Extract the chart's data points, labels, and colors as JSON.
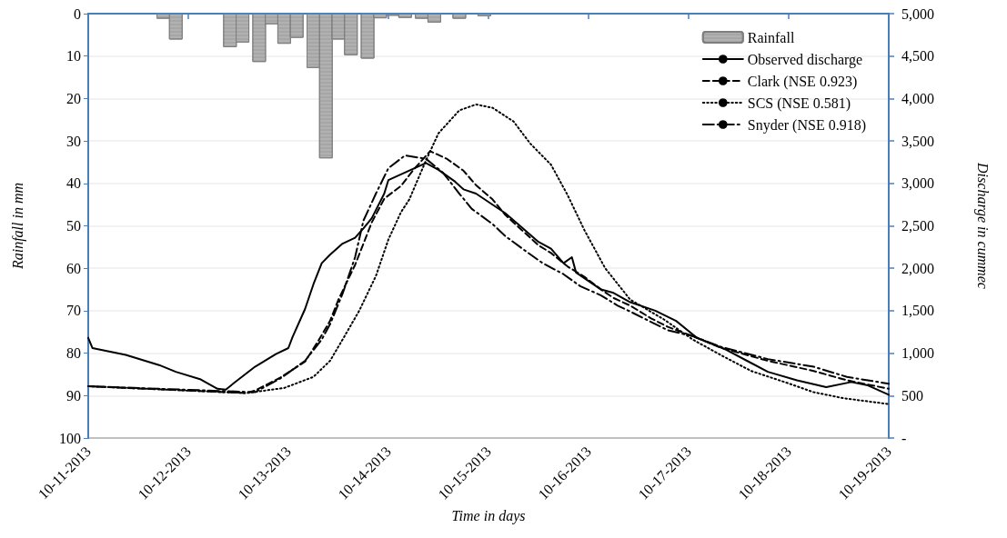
{
  "chart_data": {
    "type": "line",
    "xlabel": "Time in days",
    "ylabel": "Rainfall in mm",
    "y2label": "Discharge in cummec",
    "xlim": [
      "2013-10-11",
      "2013-10-19"
    ],
    "xticks": [
      {
        "value": "2013-10-11",
        "label": "10-11-2013"
      },
      {
        "value": "2013-10-12",
        "label": "10-12-2013"
      },
      {
        "value": "2013-10-13",
        "label": "10-13-2013"
      },
      {
        "value": "2013-10-14",
        "label": "10-14-2013"
      },
      {
        "value": "2013-10-15",
        "label": "10-15-2013"
      },
      {
        "value": "2013-10-16",
        "label": "10-16-2013"
      },
      {
        "value": "2013-10-17",
        "label": "10-17-2013"
      },
      {
        "value": "2013-10-18",
        "label": "10-18-2013"
      },
      {
        "value": "2013-10-19",
        "label": "10-19-2013"
      }
    ],
    "ylim": [
      100,
      0
    ],
    "yticks": [
      0,
      10,
      20,
      30,
      40,
      50,
      60,
      70,
      80,
      90,
      100
    ],
    "y2lim": [
      0,
      5000
    ],
    "y2ticks": [
      {
        "value": 0,
        "label": "-"
      },
      500,
      {
        "value": 1000,
        "label": "1,000"
      },
      {
        "value": 1500,
        "label": "1,500"
      },
      {
        "value": 2000,
        "label": "2,000"
      },
      {
        "value": 2500,
        "label": "2,500"
      },
      {
        "value": 3000,
        "label": "3,000"
      },
      {
        "value": 3500,
        "label": "3,500"
      },
      {
        "value": 4000,
        "label": "4,000"
      },
      {
        "value": 4500,
        "label": "4,500"
      },
      {
        "value": 5000,
        "label": "5,000"
      }
    ],
    "grid": "y",
    "legend": "top right",
    "series": [
      {
        "name": "Rainfall",
        "type": "bar",
        "axis": "y",
        "color": "#a6a6a6",
        "x": [
          "2013-10-11T18:00",
          "2013-10-11T21:00",
          "2013-10-12T10:00",
          "2013-10-12T13:00",
          "2013-10-12T17:00",
          "2013-10-12T20:00",
          "2013-10-12T23:00",
          "2013-10-13T02:00",
          "2013-10-13T06:00",
          "2013-10-13T09:00",
          "2013-10-13T12:00",
          "2013-10-13T15:00",
          "2013-10-13T19:00",
          "2013-10-13T22:00",
          "2013-10-14T01:00",
          "2013-10-14T04:00",
          "2013-10-14T08:00",
          "2013-10-14T11:00",
          "2013-10-14T17:00",
          "2013-10-14T23:00"
        ],
        "values": [
          1.2,
          6.1,
          7.9,
          6.8,
          11.4,
          2.5,
          7.1,
          5.7,
          12.8,
          34.1,
          6.1,
          9.8,
          10.6,
          1.1,
          0.5,
          1.0,
          1.2,
          2.1,
          1.2,
          0.6
        ]
      },
      {
        "name": "Observed discharge",
        "axis": "y2",
        "color": "#000000",
        "line_style": "solid",
        "x": [
          "2013-10-11T00:00",
          "2013-10-11T01:00",
          "2013-10-11T09:00",
          "2013-10-11T17:00",
          "2013-10-11T21:00",
          "2013-10-12T03:00",
          "2013-10-12T07:00",
          "2013-10-12T09:00",
          "2013-10-12T11:00",
          "2013-10-12T16:00",
          "2013-10-12T21:00",
          "2013-10-13T00:00",
          "2013-10-13T01:00",
          "2013-10-13T04:00",
          "2013-10-13T06:00",
          "2013-10-13T08:00",
          "2013-10-13T10:00",
          "2013-10-13T13:00",
          "2013-10-13T16:00",
          "2013-10-13T18:00",
          "2013-10-13T20:00",
          "2013-10-13T23:00",
          "2013-10-14T00:00",
          "2013-10-14T09:00",
          "2013-10-14T12:00",
          "2013-10-14T16:00",
          "2013-10-14T18:00",
          "2013-10-14T21:00",
          "2013-10-15T04:00",
          "2013-10-15T08:00",
          "2013-10-15T12:00",
          "2013-10-15T15:00",
          "2013-10-15T18:00",
          "2013-10-15T20:00",
          "2013-10-15T21:00",
          "2013-10-16T03:00",
          "2013-10-16T06:00",
          "2013-10-16T10:00",
          "2013-10-16T16:00",
          "2013-10-16T21:00",
          "2013-10-17T02:00",
          "2013-10-17T09:00",
          "2013-10-17T14:00",
          "2013-10-17T19:00",
          "2013-10-18T02:00",
          "2013-10-18T09:00",
          "2013-10-18T15:00",
          "2013-10-18T19:00",
          "2013-10-19T00:00"
        ],
        "values": [
          1180,
          1060,
          980,
          860,
          780,
          690,
          580,
          570,
          650,
          840,
          990,
          1060,
          1190,
          1520,
          1810,
          2060,
          2160,
          2290,
          2360,
          2470,
          2590,
          2880,
          3040,
          3240,
          3160,
          3020,
          2930,
          2880,
          2650,
          2480,
          2310,
          2230,
          2060,
          2130,
          1950,
          1750,
          1710,
          1600,
          1500,
          1380,
          1180,
          1040,
          910,
          780,
          680,
          600,
          660,
          620,
          510
        ]
      },
      {
        "name": "Clark (NSE 0.923)",
        "axis": "y2",
        "color": "#000000",
        "line_style": "dashed",
        "x": [
          "2013-10-11T00:00",
          "2013-10-12T14:00",
          "2013-10-12T16:00",
          "2013-10-12T22:00",
          "2013-10-13T04:00",
          "2013-10-13T07:00",
          "2013-10-13T10:00",
          "2013-10-13T12:00",
          "2013-10-13T16:00",
          "2013-10-13T20:00",
          "2013-10-13T23:00",
          "2013-10-14T03:00",
          "2013-10-14T06:00",
          "2013-10-14T10:00",
          "2013-10-14T14:00",
          "2013-10-14T18:00",
          "2013-10-14T21:00",
          "2013-10-15T01:00",
          "2013-10-15T04:00",
          "2013-10-15T08:00",
          "2013-10-15T12:00",
          "2013-10-15T15:00",
          "2013-10-15T19:00",
          "2013-10-15T23:00",
          "2013-10-16T03:00",
          "2013-10-16T06:00",
          "2013-10-16T10:00",
          "2013-10-16T15:00",
          "2013-10-16T19:00",
          "2013-10-17T01:00",
          "2013-10-17T08:00",
          "2013-10-17T19:00",
          "2013-10-18T06:00",
          "2013-10-18T14:00",
          "2013-10-19T00:00"
        ],
        "values": [
          610,
          530,
          560,
          710,
          900,
          1130,
          1380,
          1630,
          2040,
          2540,
          2820,
          2970,
          3160,
          3380,
          3290,
          3150,
          2980,
          2810,
          2630,
          2450,
          2270,
          2180,
          2020,
          1900,
          1750,
          1650,
          1560,
          1410,
          1310,
          1200,
          1060,
          910,
          790,
          680,
          580
        ]
      },
      {
        "name": "SCS (NSE 0.581)",
        "axis": "y2",
        "color": "#000000",
        "line_style": "dotted",
        "x": [
          "2013-10-11T00:00",
          "2013-10-12T14:00",
          "2013-10-12T23:00",
          "2013-10-13T06:00",
          "2013-10-13T10:00",
          "2013-10-13T13:00",
          "2013-10-13T17:00",
          "2013-10-13T21:00",
          "2013-10-14T00:00",
          "2013-10-14T03:00",
          "2013-10-14T05:00",
          "2013-10-14T09:00",
          "2013-10-14T12:00",
          "2013-10-14T17:00",
          "2013-10-14T21:00",
          "2013-10-15T01:00",
          "2013-10-15T06:00",
          "2013-10-15T10:00",
          "2013-10-15T15:00",
          "2013-10-15T19:00",
          "2013-10-15T23:00",
          "2013-10-16T04:00",
          "2013-10-16T10:00",
          "2013-10-16T18:00",
          "2013-10-17T01:00",
          "2013-10-17T08:00",
          "2013-10-17T15:00",
          "2013-10-17T23:00",
          "2013-10-18T06:00",
          "2013-10-18T13:00",
          "2013-10-19T00:00"
        ],
        "values": [
          610,
          530,
          590,
          720,
          910,
          1160,
          1500,
          1910,
          2340,
          2660,
          2810,
          3270,
          3590,
          3860,
          3930,
          3890,
          3730,
          3470,
          3220,
          2860,
          2450,
          2000,
          1630,
          1400,
          1160,
          970,
          790,
          660,
          540,
          470,
          400
        ]
      },
      {
        "name": "Snyder (NSE 0.918)",
        "axis": "y2",
        "color": "#000000",
        "line_style": "dashdot",
        "x": [
          "2013-10-11T00:00",
          "2013-10-12T16:00",
          "2013-10-12T22:00",
          "2013-10-13T04:00",
          "2013-10-13T08:00",
          "2013-10-13T10:00",
          "2013-10-13T13:00",
          "2013-10-13T16:00",
          "2013-10-13T18:00",
          "2013-10-13T21:00",
          "2013-10-14T00:00",
          "2013-10-14T04:00",
          "2013-10-14T09:00",
          "2013-10-14T13:00",
          "2013-10-14T17:00",
          "2013-10-14T20:00",
          "2013-10-15T01:00",
          "2013-10-15T04:00",
          "2013-10-15T09:00",
          "2013-10-15T13:00",
          "2013-10-15T18:00",
          "2013-10-15T22:00",
          "2013-10-16T03:00",
          "2013-10-16T07:00",
          "2013-10-16T10:00",
          "2013-10-16T19:00",
          "2013-10-17T01:00",
          "2013-10-17T08:00",
          "2013-10-17T19:00",
          "2013-10-18T06:00",
          "2013-10-18T14:00",
          "2013-10-19T00:00"
        ],
        "values": [
          610,
          540,
          700,
          910,
          1160,
          1340,
          1700,
          2130,
          2560,
          2880,
          3180,
          3330,
          3290,
          3130,
          2880,
          2700,
          2520,
          2380,
          2200,
          2060,
          1930,
          1790,
          1680,
          1560,
          1490,
          1270,
          1200,
          1070,
          930,
          840,
          720,
          640
        ]
      }
    ]
  }
}
